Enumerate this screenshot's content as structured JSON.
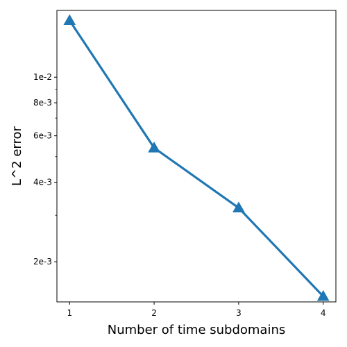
{
  "chart_data": {
    "type": "line",
    "title": "",
    "xlabel": "Number of time subdomains",
    "ylabel": "L^2 error",
    "yscale": "log",
    "grid": false,
    "legend": false,
    "xlim": [
      0.85,
      4.15
    ],
    "ylim": [
      0.00141,
      0.0179
    ],
    "x_ticks": [
      1,
      2,
      3,
      4
    ],
    "y_ticks": [
      {
        "value": 0.01,
        "label": "1e-2"
      },
      {
        "value": 0.008,
        "label": "8e-3"
      },
      {
        "value": 0.006,
        "label": "6e-3"
      },
      {
        "value": 0.004,
        "label": "4e-3"
      },
      {
        "value": 0.002,
        "label": "2e-3"
      }
    ],
    "y_minor_ticks": [
      0.009,
      0.007,
      0.005,
      0.003
    ],
    "series": [
      {
        "color": "#1f77b4",
        "marker": "triangle-up",
        "x": [
          1,
          2,
          3,
          4
        ],
        "y": [
          0.0164,
          0.0054,
          0.0032,
          0.00148
        ]
      }
    ]
  }
}
